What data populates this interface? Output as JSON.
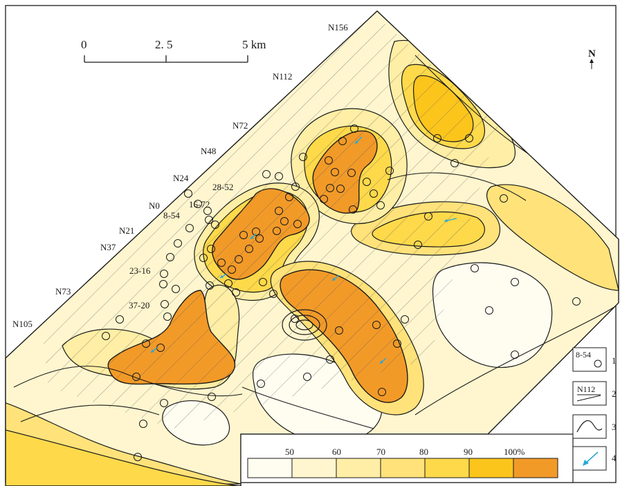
{
  "scale_bar": {
    "ticks": [
      "0",
      "2. 5",
      "5 km"
    ]
  },
  "north_arrow": {
    "label": "N"
  },
  "lines": [
    "N156",
    "N112",
    "N72",
    "N48",
    "N24",
    "N0",
    "N21",
    "N37",
    "N73",
    "N105"
  ],
  "wells": [
    "28-52",
    "16-72",
    "8-54",
    "23-16",
    "37-20"
  ],
  "legend": {
    "items": [
      {
        "sample": "8-54",
        "num": "1"
      },
      {
        "sample": "N112",
        "num": "2"
      },
      {
        "sample": "",
        "num": "3"
      },
      {
        "sample": "",
        "num": "4"
      }
    ]
  },
  "color_scale": {
    "labels": [
      "50",
      "60",
      "70",
      "80",
      "90",
      "100%"
    ],
    "colors": [
      "#fffdf0",
      "#fff6cf",
      "#ffeea5",
      "#ffe27a",
      "#fed94a",
      "#fcc51c",
      "#f29a28"
    ]
  },
  "colors": {
    "frame": "#1a1a1a",
    "contour": "#1a1a1a",
    "flow": "#2aa7d9",
    "hatch": "#555555"
  }
}
